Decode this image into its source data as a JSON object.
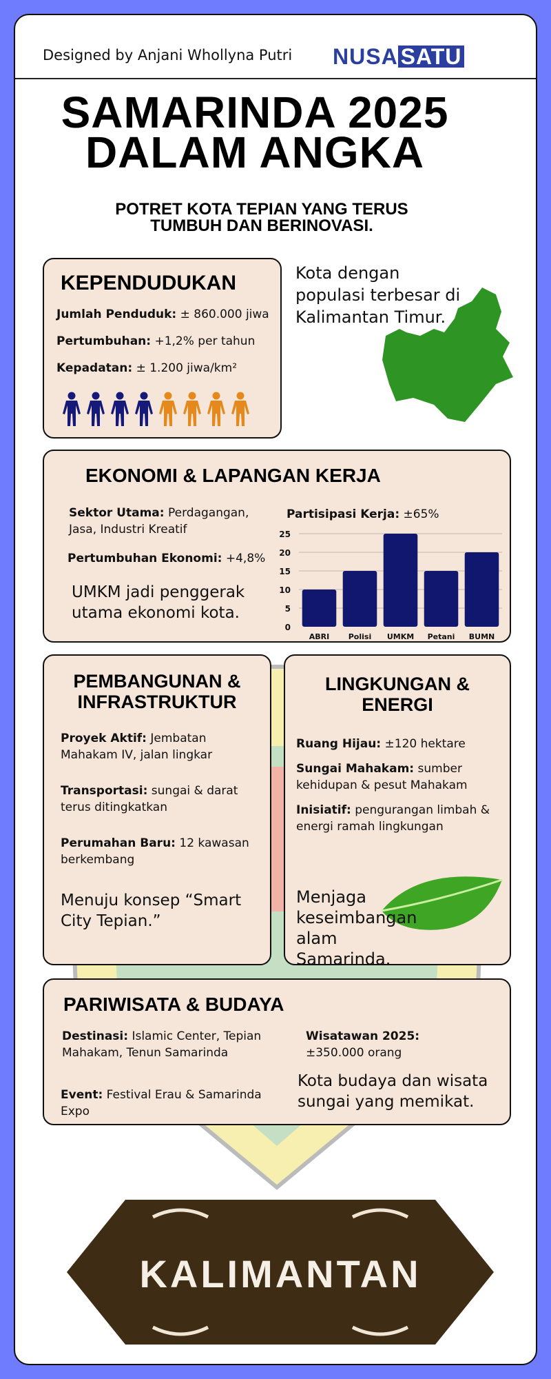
{
  "header": {
    "credit": "Designed by Anjani Whollyna Putri",
    "logo_left": "NUSA",
    "logo_right": "SATU"
  },
  "title": {
    "line1": "SAMARINDA 2025",
    "line2": "DALAM ANGKA"
  },
  "subtitle": {
    "line1": "POTRET KOTA TEPIAN YANG TERUS",
    "line2": "TUMBUH DAN BERINOVASI."
  },
  "kependudukan": {
    "heading": "KEPENDUDUKAN",
    "items": [
      {
        "label": "Jumlah Penduduk:",
        "value": " ± 860.000 jiwa"
      },
      {
        "label": "Pertumbuhan:",
        "value": " +1,2% per tahun"
      },
      {
        "label": "Kepadatan:",
        "value": " ± 1.200 jiwa/km²"
      }
    ],
    "icons": {
      "name": "person-icon",
      "colors": [
        "#14197a",
        "#14197a",
        "#14197a",
        "#14197a",
        "#e6891c",
        "#e6891c",
        "#e6891c",
        "#e6891c"
      ]
    },
    "note": "Kota dengan populasi terbesar di Kalimantan Timur.",
    "map_color": "#2e9424"
  },
  "ekonomi": {
    "heading": "EKONOMI & LAPANGAN KERJA",
    "sektor_label": "Sektor  Utama:",
    "sektor_value": "  Perdagangan, Jasa, Industri Kreatif",
    "growth_label": "Pertumbuhan Ekonomi:",
    "growth_value": " +4,8%",
    "note": "UMKM jadi penggerak utama ekonomi kota.",
    "chart_label": "Partisipasi Kerja:",
    "chart_value": " ±65%"
  },
  "chart_data": {
    "type": "bar",
    "categories": [
      "ABRI",
      "Polisi",
      "UMKM",
      "Petani",
      "BUMN"
    ],
    "values": [
      10,
      15,
      25,
      15,
      20
    ],
    "ylim": [
      0,
      25
    ],
    "yticks": [
      0,
      5,
      10,
      15,
      20,
      25
    ],
    "grid": true,
    "bar_color": "#11176f",
    "title": "",
    "xlabel": "",
    "ylabel": ""
  },
  "pembangunan": {
    "heading1": "PEMBANGUNAN &",
    "heading2": "INFRASTRUKTUR",
    "items": [
      {
        "label": "Proyek Aktif:",
        "value": " Jembatan Mahakam IV, jalan lingkar"
      },
      {
        "label": "Transportasi:",
        "value": " sungai & darat terus ditingkatkan"
      },
      {
        "label": "Perumahan Baru:",
        "value": " 12 kawasan berkembang"
      }
    ],
    "note": "Menuju konsep “Smart City Tepian.”"
  },
  "lingkungan": {
    "heading1": "LINGKUNGAN &",
    "heading2": "ENERGI",
    "items": [
      {
        "label": "Ruang Hijau:",
        "value": " ±120 hektare"
      },
      {
        "label": "Sungai Mahakam:",
        "value": " sumber kehidupan & pesut Mahakam"
      },
      {
        "label": "Inisiatif:",
        "value": " pengurangan limbah & energi ramah lingkungan"
      }
    ],
    "note": "Menjaga keseimbangan alam Samarinda.",
    "leaf_color": "#3fa524"
  },
  "pariwisata": {
    "heading": "PARIWISATA & BUDAYA",
    "destinasi_label": "Destinasi:",
    "destinasi_value": " Islamic Center, Tepian Mahakam, Tenun Samarinda",
    "event_label": "Event:",
    "event_value": " Festival Erau & Samarinda Expo",
    "wisatawan_label": "Wisatawan 2025:",
    "wisatawan_value": " ±350.000 orang",
    "note": "Kota budaya dan wisata sungai yang memikat."
  },
  "banner": {
    "text": "KALIMANTAN",
    "color": "#3e2c14"
  }
}
